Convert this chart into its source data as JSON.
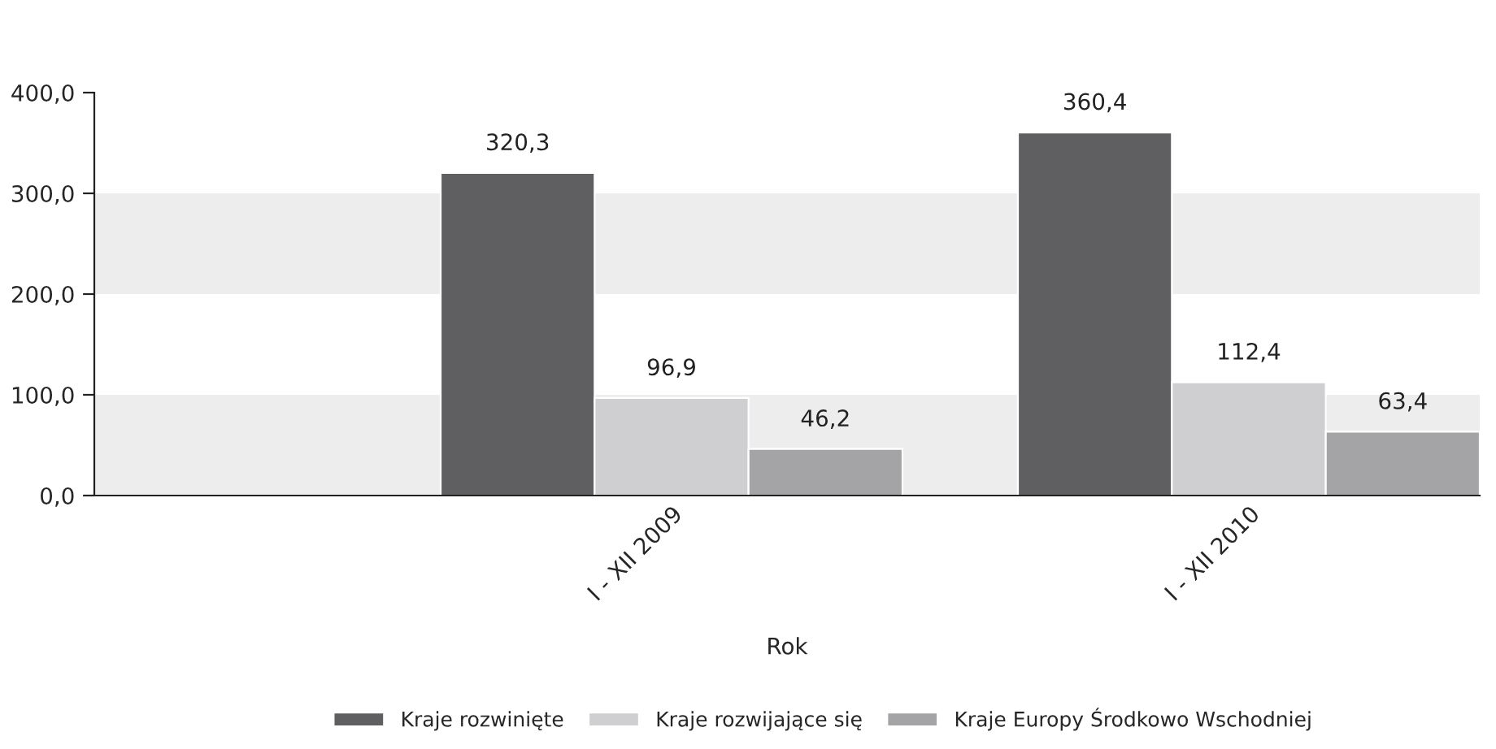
{
  "chart_data": {
    "type": "bar",
    "xlabel": "Rok",
    "categories": [
      "I - XII 2009",
      "I - XII 2010"
    ],
    "series": [
      {
        "name": "Kraje rozwinięte",
        "color": "#5f5f61",
        "values": [
          320.3,
          360.4
        ]
      },
      {
        "name": "Kraje rozwijające się",
        "color": "#cfcfd1",
        "values": [
          96.9,
          112.4
        ]
      },
      {
        "name": "Kraje Europy Środkowo Wschodniej",
        "color": "#a4a4a6",
        "values": [
          46.2,
          63.4
        ]
      }
    ],
    "ylim": [
      0,
      400
    ],
    "yticks": [
      {
        "value": 0,
        "label": "0,0"
      },
      {
        "value": 100,
        "label": "100,0"
      },
      {
        "value": 200,
        "label": "200,0"
      },
      {
        "value": 300,
        "label": "300,0"
      },
      {
        "value": 400,
        "label": "400,0"
      }
    ],
    "value_labels": [
      [
        "320,3",
        "360,4"
      ],
      [
        "96,9",
        "112,4"
      ],
      [
        "46,2",
        "63,4"
      ]
    ],
    "bands": [
      {
        "axis": "y",
        "from": 0,
        "to": 100,
        "color": "#ededed"
      },
      {
        "axis": "y",
        "from": 200,
        "to": 300,
        "color": "#ededed"
      }
    ],
    "legend": "bottom"
  }
}
